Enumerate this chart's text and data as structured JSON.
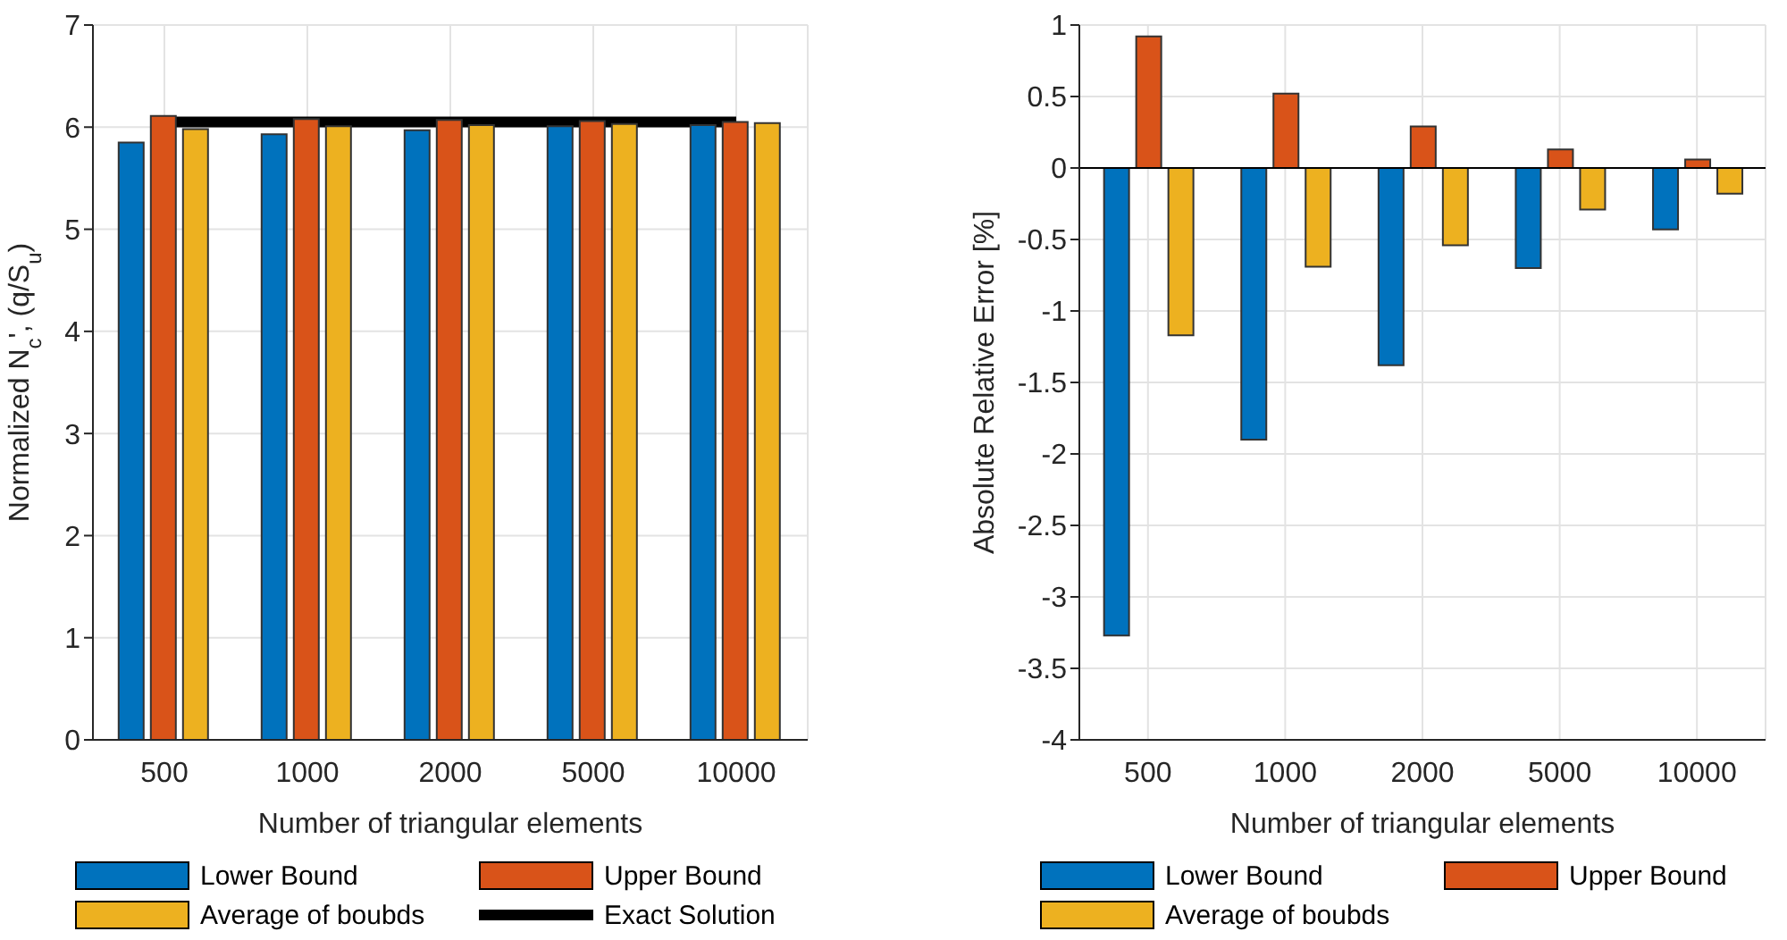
{
  "chart_data": [
    {
      "type": "bar",
      "xlabel": "Number of triangular elements",
      "ylabel": "Normalized N$_{c}$', (q/S$_{u}$)",
      "categories": [
        "500",
        "1000",
        "2000",
        "5000",
        "10000"
      ],
      "ylim": [
        0,
        7
      ],
      "yticks": [
        0,
        1,
        2,
        3,
        4,
        5,
        6,
        7
      ],
      "grid": true,
      "legend": "bottom",
      "series": [
        {
          "name": "Lower Bound",
          "color": "#0072bd",
          "values": [
            5.85,
            5.93,
            5.97,
            6.01,
            6.02
          ]
        },
        {
          "name": "Upper Bound",
          "color": "#d95319",
          "values": [
            6.11,
            6.08,
            6.07,
            6.06,
            6.05
          ]
        },
        {
          "name": "Average of boubds",
          "color": "#edb120",
          "values": [
            5.98,
            6.01,
            6.02,
            6.03,
            6.04
          ]
        },
        {
          "name": "Exact Solution",
          "type": "line",
          "color": "#000000",
          "values": [
            6.05,
            6.05,
            6.05,
            6.05,
            6.05
          ]
        }
      ]
    },
    {
      "type": "bar",
      "xlabel": "Number of triangular elements",
      "ylabel": "Absolute Relative Error [%]",
      "categories": [
        "500",
        "1000",
        "2000",
        "5000",
        "10000"
      ],
      "ylim": [
        -4,
        1
      ],
      "yticks": [
        -4,
        -3.5,
        -3,
        -2.5,
        -2,
        -1.5,
        -1,
        -0.5,
        0,
        0.5,
        1
      ],
      "grid": true,
      "legend": "bottom",
      "series": [
        {
          "name": "Lower Bound",
          "color": "#0072bd",
          "values": [
            -3.27,
            -1.9,
            -1.38,
            -0.7,
            -0.43
          ]
        },
        {
          "name": "Upper Bound",
          "color": "#d95319",
          "values": [
            0.92,
            0.52,
            0.29,
            0.13,
            0.06
          ]
        },
        {
          "name": "Average of boubds",
          "color": "#edb120",
          "values": [
            -1.17,
            -0.69,
            -0.54,
            -0.29,
            -0.18
          ]
        }
      ]
    }
  ]
}
